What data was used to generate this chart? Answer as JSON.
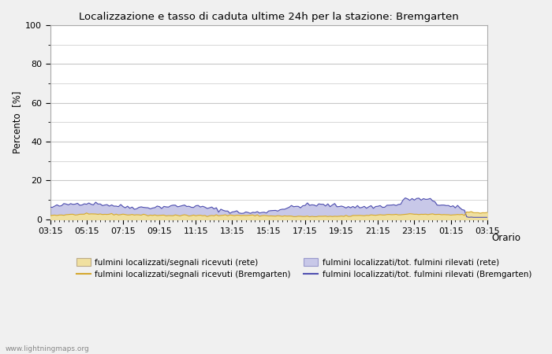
{
  "title": "Localizzazione e tasso di caduta ultime 24h per la stazione: Bremgarten",
  "xlabel": "Orario",
  "ylabel": "Percento  [%]",
  "ylim": [
    0,
    100
  ],
  "yticks": [
    0,
    20,
    40,
    60,
    80,
    100
  ],
  "ytick_minor": [
    10,
    30,
    50,
    70,
    90
  ],
  "xtick_labels": [
    "03:15",
    "05:15",
    "07:15",
    "09:15",
    "11:15",
    "13:15",
    "15:15",
    "17:15",
    "19:15",
    "21:15",
    "23:15",
    "01:15",
    "03:15"
  ],
  "background_color": "#f0f0f0",
  "plot_bg_color": "#ffffff",
  "grid_color": "#c8c8c8",
  "fill_rete_color": "#f0e0a0",
  "fill_bremgarten_color": "#c8c8e8",
  "line_rete_color": "#d4a830",
  "line_bremgarten_color": "#5050b0",
  "watermark": "www.lightningmaps.org",
  "legend_labels": [
    "fulmini localizzati/segnali ricevuti (rete)",
    "fulmini localizzati/segnali ricevuti (Bremgarten)",
    "fulmini localizzati/tot. fulmini rilevati (rete)",
    "fulmini localizzati/tot. fulmini rilevati (Bremgarten)"
  ]
}
